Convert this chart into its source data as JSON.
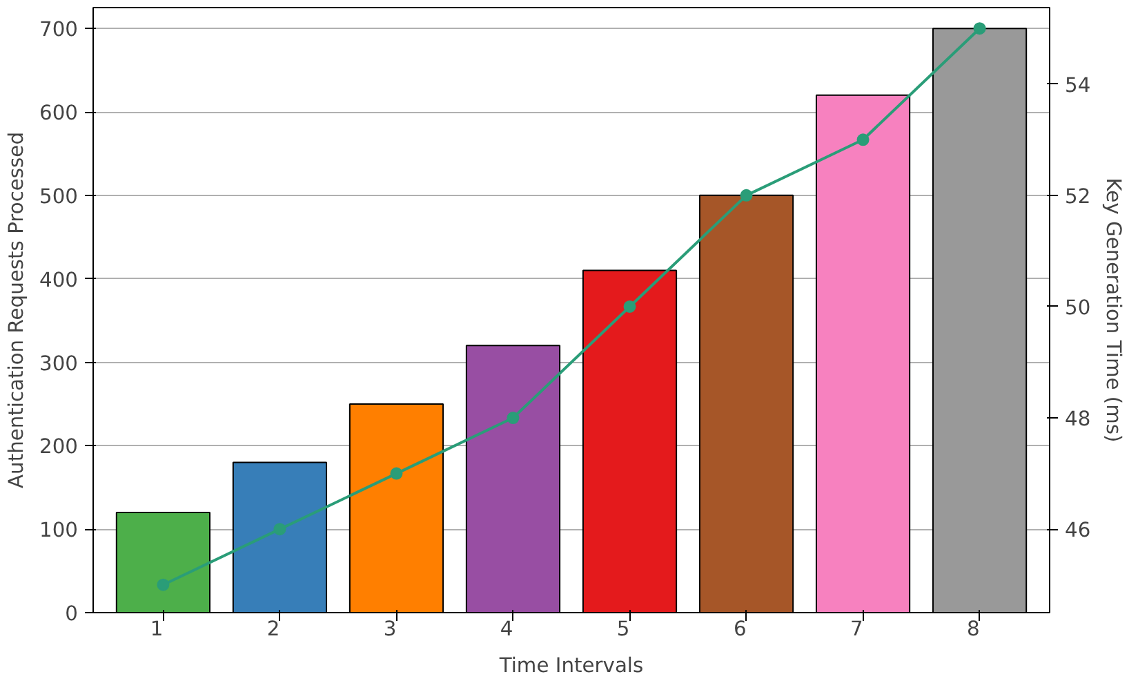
{
  "chart_data": {
    "type": "bar",
    "xlabel": "Time Intervals",
    "ylabel": "Authentication Requests Processed",
    "y2label": "Key Generation Time (ms)",
    "categories": [
      "1",
      "2",
      "3",
      "4",
      "5",
      "6",
      "7",
      "8"
    ],
    "series": [
      {
        "colors": [
          "#4daf4a",
          "#377eb8",
          "#ff7f00",
          "#984ea3",
          "#e41a1c",
          "#a65628",
          "#f781bf",
          "#999999"
        ],
        "values": [
          120,
          180,
          250,
          320,
          410,
          500,
          620,
          700
        ]
      },
      {
        "type": "line",
        "axis": "y2",
        "color": "#2a9d78",
        "marker": "circle",
        "values": [
          45,
          46,
          47,
          48,
          50,
          52,
          53,
          55
        ]
      }
    ],
    "ylim": [
      0,
      725
    ],
    "yticks": [
      0,
      100,
      200,
      300,
      400,
      500,
      600,
      700
    ],
    "y2lim": [
      44.5,
      55.375
    ],
    "y2ticks": [
      46,
      48,
      50,
      52,
      54
    ],
    "grid": "y"
  }
}
